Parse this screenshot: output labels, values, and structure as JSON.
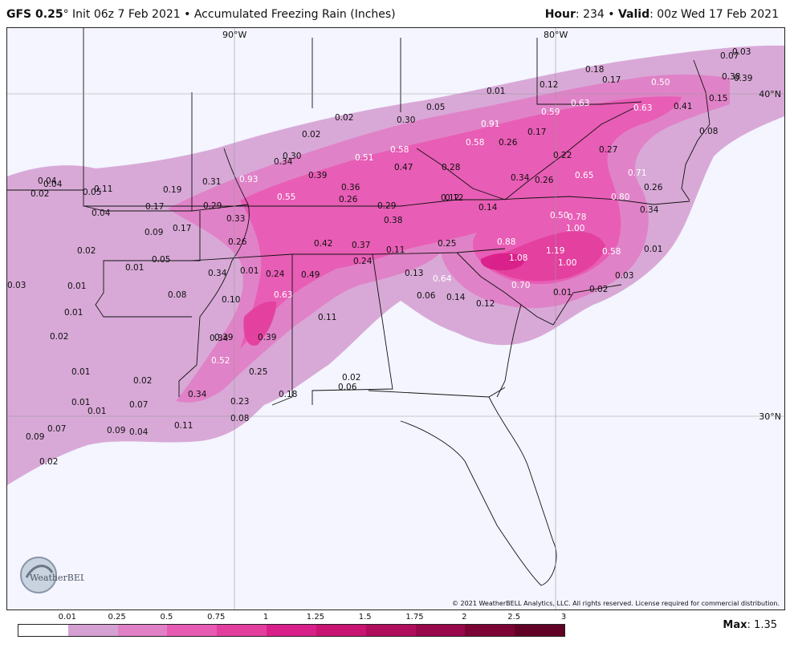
{
  "header": {
    "model": "GFS 0.25",
    "degree": "°",
    "init": " Init 06z 7 Feb 2021 • Accumulated Freezing Rain (Inches)",
    "hour_label": "Hour",
    "hour_value": ": 234 • ",
    "valid_label": "Valid",
    "valid_value": ": 00z Wed 17 Feb 2021"
  },
  "map": {
    "gridlines": {
      "lon_90": "90°W",
      "lon_80": "80°W",
      "lat_40": "40°N",
      "lat_30": "30°N"
    },
    "copyright": "© 2021 WeatherBELL Analytics, LLC. All rights reserved. License required for commercial distribution.",
    "logo_text": "WeatherBELL",
    "value_labels": [
      {
        "v": "0.03"
      },
      {
        "v": "0.07"
      },
      {
        "v": "0.18"
      },
      {
        "v": "0.17"
      },
      {
        "v": "0.50"
      },
      {
        "v": "0.38"
      },
      {
        "v": "0.39"
      },
      {
        "v": "0.12"
      },
      {
        "v": "0.01"
      },
      {
        "v": "0.63"
      },
      {
        "v": "0.63"
      },
      {
        "v": "0.41"
      },
      {
        "v": "0.15"
      },
      {
        "v": "0.05"
      },
      {
        "v": "0.59"
      },
      {
        "v": "0.02"
      },
      {
        "v": "0.30"
      },
      {
        "v": "0.91"
      },
      {
        "v": "0.17"
      },
      {
        "v": "0.08"
      },
      {
        "v": "0.02"
      },
      {
        "v": "0.30"
      },
      {
        "v": "0.58"
      },
      {
        "v": "0.58"
      },
      {
        "v": "0.26"
      },
      {
        "v": "0.22"
      },
      {
        "v": "0.27"
      },
      {
        "v": "0.34"
      },
      {
        "v": "0.51"
      },
      {
        "v": "0.47"
      },
      {
        "v": "0.28"
      },
      {
        "v": "0.12"
      },
      {
        "v": "0.34"
      },
      {
        "v": "0.26"
      },
      {
        "v": "0.65"
      },
      {
        "v": "0.71"
      },
      {
        "v": "0.26"
      },
      {
        "v": "0.39"
      },
      {
        "v": "0.93"
      },
      {
        "v": "0.31"
      },
      {
        "v": "0.04"
      },
      {
        "v": "0.04"
      },
      {
        "v": "0.11"
      },
      {
        "v": "0.19"
      },
      {
        "v": "0.36"
      },
      {
        "v": "0.80"
      },
      {
        "v": "0.02"
      },
      {
        "v": "0.05"
      },
      {
        "v": "0.55"
      },
      {
        "v": "0.26"
      },
      {
        "v": "0.12"
      },
      {
        "v": "0.29"
      },
      {
        "v": "0.14"
      },
      {
        "v": "0.34"
      },
      {
        "v": "0.17"
      },
      {
        "v": "0.29"
      },
      {
        "v": "0.04"
      },
      {
        "v": "0.50"
      },
      {
        "v": "0.78"
      },
      {
        "v": "0.33"
      },
      {
        "v": "0.38"
      },
      {
        "v": "1.00"
      },
      {
        "v": "0.17"
      },
      {
        "v": "0.09"
      },
      {
        "v": "0.26"
      },
      {
        "v": "0.42"
      },
      {
        "v": "0.37"
      },
      {
        "v": "0.25"
      },
      {
        "v": "0.88"
      },
      {
        "v": "0.02"
      },
      {
        "v": "0.05"
      },
      {
        "v": "0.11"
      },
      {
        "v": "1.19"
      },
      {
        "v": "0.58"
      },
      {
        "v": "0.01"
      },
      {
        "v": "0.24"
      },
      {
        "v": "1.08"
      },
      {
        "v": "0.01"
      },
      {
        "v": "1.00"
      },
      {
        "v": "0.34"
      },
      {
        "v": "0.01"
      },
      {
        "v": "0.24"
      },
      {
        "v": "0.49"
      },
      {
        "v": "0.13"
      },
      {
        "v": "0.03"
      },
      {
        "v": "0.03"
      },
      {
        "v": "0.01"
      },
      {
        "v": "0.64"
      },
      {
        "v": "0.70"
      },
      {
        "v": "0.02"
      },
      {
        "v": "0.08"
      },
      {
        "v": "0.10"
      },
      {
        "v": "0.63"
      },
      {
        "v": "0.06"
      },
      {
        "v": "0.14"
      },
      {
        "v": "0.12"
      },
      {
        "v": "0.01"
      },
      {
        "v": "0.01"
      },
      {
        "v": "0.11"
      },
      {
        "v": "0.02"
      },
      {
        "v": "0.34"
      },
      {
        "v": "0.39"
      },
      {
        "v": "0.39"
      },
      {
        "v": "0.52"
      },
      {
        "v": "0.01"
      },
      {
        "v": "0.25"
      },
      {
        "v": "0.02"
      },
      {
        "v": "0.02"
      },
      {
        "v": "0.06"
      },
      {
        "v": "0.01"
      },
      {
        "v": "0.34"
      },
      {
        "v": "0.23"
      },
      {
        "v": "0.18"
      },
      {
        "v": "0.07"
      },
      {
        "v": "0.01"
      },
      {
        "v": "0.08"
      },
      {
        "v": "0.09"
      },
      {
        "v": "0.07"
      },
      {
        "v": "0.09"
      },
      {
        "v": "0.04"
      },
      {
        "v": "0.11"
      },
      {
        "v": "0.02"
      }
    ]
  },
  "legend": {
    "ticks": [
      "0.01",
      "0.25",
      "0.5",
      "0.75",
      "1",
      "1.25",
      "1.5",
      "1.75",
      "2",
      "2.5",
      "3"
    ],
    "colors": [
      "#ffffff",
      "#d5a1d3",
      "#e080c6",
      "#e85bb4",
      "#e33e9e",
      "#d9208a",
      "#c81472",
      "#b00d5c",
      "#98074a",
      "#7c0435",
      "#600125"
    ],
    "max_label": "Max",
    "max_value": ": 1.35"
  }
}
